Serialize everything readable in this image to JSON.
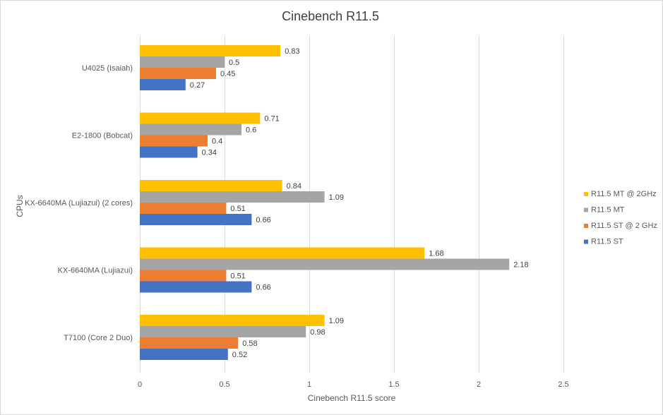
{
  "chart_data": {
    "type": "bar",
    "orientation": "horizontal",
    "title": "Cinebench R11.5",
    "xlabel": "Cinebench R11.5 score",
    "ylabel": "CPUs",
    "xlim": [
      0,
      2.5
    ],
    "xticks": [
      0,
      0.5,
      1,
      1.5,
      2,
      2.5
    ],
    "xtick_labels": [
      "0",
      "0.5",
      "1",
      "1.5",
      "2",
      "2.5"
    ],
    "grid": true,
    "legend_position": "right",
    "categories": [
      "U4025 (Isaiah)",
      "E2-1800 (Bobcat)",
      "KX-6640MA (Lujiazui) (2 cores)",
      "KX-6640MA (Lujiazui)",
      "T7100 (Core 2 Duo)"
    ],
    "series": [
      {
        "name": "R11.5 MT @ 2GHz",
        "color": "#FFC000",
        "values": [
          0.83,
          0.71,
          0.84,
          1.68,
          1.09
        ],
        "labels": [
          "0.83",
          "0.71",
          "0.84",
          "1.68",
          "1.09"
        ]
      },
      {
        "name": "R11.5 MT",
        "color": "#A5A5A5",
        "values": [
          0.5,
          0.6,
          1.09,
          2.18,
          0.98
        ],
        "labels": [
          "0.5",
          "0.6",
          "1.09",
          "2.18",
          "0.98"
        ]
      },
      {
        "name": "R11.5 ST @ 2 GHz",
        "color": "#ED7D31",
        "values": [
          0.45,
          0.4,
          0.51,
          0.51,
          0.58
        ],
        "labels": [
          "0.45",
          "0.4",
          "0.51",
          "0.51",
          "0.58"
        ]
      },
      {
        "name": "R11.5 ST",
        "color": "#4472C4",
        "values": [
          0.27,
          0.34,
          0.66,
          0.66,
          0.52
        ],
        "labels": [
          "0.27",
          "0.34",
          "0.66",
          "0.66",
          "0.52"
        ]
      }
    ]
  }
}
